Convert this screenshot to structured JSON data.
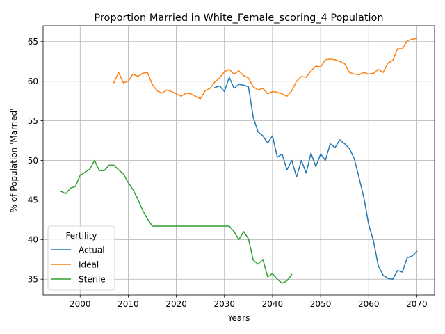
{
  "chart_data": {
    "type": "line",
    "title": "Proportion Married in White_Female_scoring_4 Population",
    "xlabel": "Years",
    "ylabel": "% of Population 'Married'",
    "xlim": [
      1992.3,
      2073.7
    ],
    "ylim": [
      33.0,
      67.0
    ],
    "xticks": [
      2000,
      2010,
      2020,
      2030,
      2040,
      2050,
      2060,
      2070
    ],
    "yticks": [
      35,
      40,
      45,
      50,
      55,
      60,
      65
    ],
    "grid": true,
    "legend": {
      "title": "Fertility",
      "placement": "lower-left"
    },
    "series": [
      {
        "name": "Actual",
        "color": "#1f77b4",
        "x": [
          2028,
          2029,
          2030,
          2031,
          2032,
          2033,
          2034,
          2035,
          2036,
          2037,
          2038,
          2039,
          2040,
          2041,
          2042,
          2043,
          2044,
          2045,
          2046,
          2047,
          2048,
          2049,
          2050,
          2051,
          2052,
          2053,
          2054,
          2055,
          2056,
          2057,
          2058,
          2059,
          2060,
          2061,
          2062,
          2063,
          2064,
          2065,
          2066,
          2067,
          2068,
          2069,
          2070
        ],
        "y": [
          59.2,
          59.4,
          58.7,
          60.5,
          59.1,
          59.6,
          59.5,
          59.3,
          55.4,
          53.6,
          53.1,
          52.2,
          53.1,
          50.4,
          50.8,
          48.8,
          50.0,
          47.9,
          50.0,
          48.4,
          50.9,
          49.2,
          50.8,
          50.0,
          52.1,
          51.6,
          52.6,
          52.1,
          51.5,
          50.2,
          47.8,
          45.3,
          41.9,
          39.8,
          36.7,
          35.5,
          35.1,
          35.0,
          36.1,
          35.9,
          37.7,
          37.9,
          38.5
        ]
      },
      {
        "name": "Ideal",
        "color": "#ff7f0e",
        "x": [
          2007,
          2008,
          2009,
          2010,
          2011,
          2012,
          2013,
          2014,
          2015,
          2016,
          2017,
          2018,
          2019,
          2020,
          2021,
          2022,
          2023,
          2024,
          2025,
          2026,
          2027,
          2028,
          2029,
          2030,
          2031,
          2032,
          2033,
          2034,
          2035,
          2036,
          2037,
          2038,
          2039,
          2040,
          2041,
          2042,
          2043,
          2044,
          2045,
          2046,
          2047,
          2048,
          2049,
          2050,
          2051,
          2052,
          2053,
          2054,
          2055,
          2056,
          2057,
          2058,
          2059,
          2060,
          2061,
          2062,
          2063,
          2064,
          2065,
          2066,
          2067,
          2068,
          2069,
          2070
        ],
        "y": [
          59.8,
          61.1,
          59.8,
          60.0,
          60.9,
          60.6,
          61.0,
          61.1,
          59.6,
          58.8,
          58.5,
          58.9,
          58.7,
          58.4,
          58.1,
          58.5,
          58.4,
          58.1,
          57.8,
          58.8,
          59.1,
          59.9,
          60.4,
          61.2,
          61.5,
          60.9,
          61.3,
          60.7,
          60.4,
          59.3,
          58.9,
          59.1,
          58.4,
          58.7,
          58.6,
          58.4,
          58.1,
          58.8,
          60.0,
          60.6,
          60.5,
          61.3,
          61.9,
          61.8,
          62.7,
          62.8,
          62.7,
          62.5,
          62.2,
          61.1,
          60.9,
          60.8,
          61.1,
          60.9,
          61.0,
          61.5,
          61.1,
          62.3,
          62.6,
          64.1,
          64.1,
          65.1,
          65.3,
          65.4
        ]
      },
      {
        "name": "Sterile",
        "color": "#2ca02c",
        "x": [
          1996,
          1997,
          1998,
          1999,
          2000,
          2001,
          2002,
          2003,
          2004,
          2005,
          2006,
          2007,
          2008,
          2009,
          2010,
          2011,
          2012,
          2013,
          2014,
          2015,
          2016,
          2017,
          2018,
          2019,
          2020,
          2021,
          2022,
          2023,
          2024,
          2025,
          2026,
          2027,
          2028,
          2029,
          2030,
          2031,
          2032,
          2033,
          2034,
          2035,
          2036,
          2037,
          2038,
          2039,
          2040,
          2041,
          2042,
          2043,
          2044
        ],
        "y": [
          46.1,
          45.8,
          46.5,
          46.7,
          48.1,
          48.5,
          48.9,
          50.0,
          48.7,
          48.7,
          49.4,
          49.4,
          48.8,
          48.3,
          47.2,
          46.3,
          45.1,
          43.7,
          42.6,
          41.7,
          41.7,
          41.7,
          41.7,
          41.7,
          41.7,
          41.7,
          41.7,
          41.7,
          41.7,
          41.7,
          41.7,
          41.7,
          41.7,
          41.7,
          41.7,
          41.7,
          41.0,
          40.0,
          41.0,
          40.1,
          37.4,
          36.9,
          37.5,
          35.3,
          35.7,
          35.0,
          34.5,
          34.8,
          35.6
        ]
      }
    ]
  }
}
